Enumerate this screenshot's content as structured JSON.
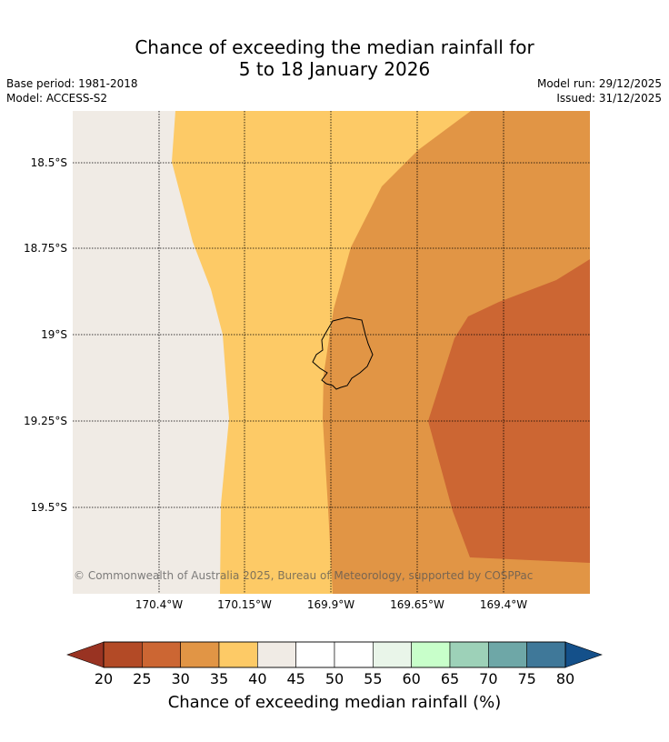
{
  "title": {
    "line1": "Chance of exceeding the median rainfall for",
    "line2": "5 to 18 January 2026"
  },
  "info": {
    "base_period": "Base period: 1981-2018",
    "model": "Model: ACCESS-S2",
    "model_run": "Model run: 29/12/2025",
    "issued": "Issued: 31/12/2025"
  },
  "map": {
    "lat_labels": [
      "18.5°S",
      "18.75°S",
      "19°S",
      "19.25°S",
      "19.5°S"
    ],
    "lon_labels": [
      "170.4°W",
      "170.15°W",
      "169.9°W",
      "169.65°W",
      "169.4°W"
    ],
    "copyright": "© Commonwealth of Australia 2025, Bureau of Meteorology, supported by COSPPac",
    "region_colors": {
      "band_40_45": "#f0ebe5",
      "band_35_40": "#fdca66",
      "band_30_35": "#e19545",
      "band_25_30": "#cc6633"
    }
  },
  "colorbar": {
    "label": "Chance of exceeding median rainfall (%)",
    "ticks": [
      "20",
      "25",
      "30",
      "35",
      "40",
      "45",
      "50",
      "55",
      "60",
      "65",
      "70",
      "75",
      "80"
    ],
    "colors": [
      "#b34a26",
      "#cc6633",
      "#e19545",
      "#fdca66",
      "#f0ebe5",
      "#ffffff",
      "#ffffff",
      "#e9f5e9",
      "#c8ffca",
      "#9dd1b8",
      "#6ea7a7",
      "#3f7899"
    ],
    "under_color": "#993322",
    "over_color": "#14508a"
  }
}
